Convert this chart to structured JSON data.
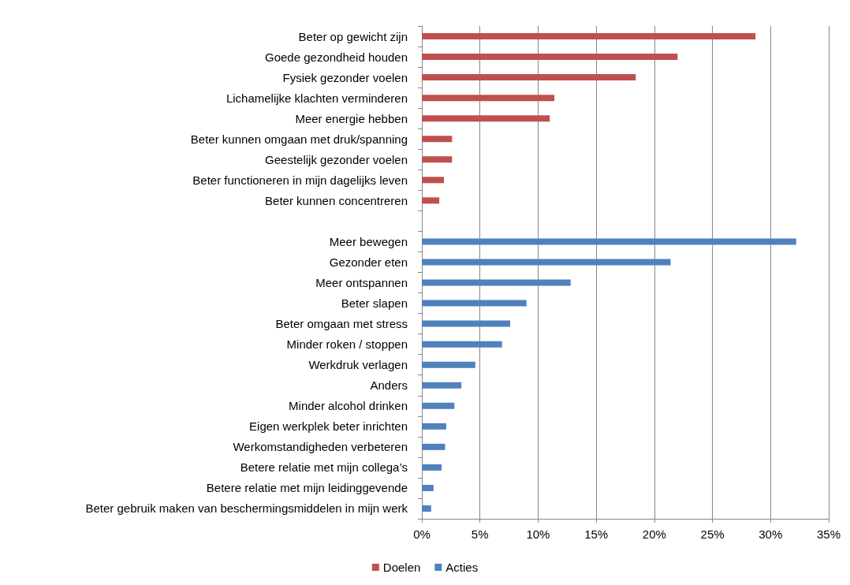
{
  "chart_data": {
    "type": "bar",
    "orientation": "horizontal",
    "categories": [
      "Beter op gewicht zijn",
      "Goede gezondheid houden",
      "Fysiek gezonder voelen",
      "Lichamelijke klachten verminderen",
      "Meer energie hebben",
      "Beter kunnen omgaan met druk/spanning",
      "Geestelijk gezonder voelen",
      "Beter functioneren in mijn dagelijks leven",
      "Beter kunnen concentreren",
      null,
      "Meer bewegen",
      "Gezonder eten",
      "Meer ontspannen",
      "Beter slapen",
      "Beter omgaan met stress",
      "Minder roken / stoppen",
      "Werkdruk verlagen",
      "Anders",
      "Minder alcohol drinken",
      "Eigen werkplek beter inrichten",
      "Werkomstandigheden verbeteren",
      "Betere relatie met mijn collega’s",
      "Betere relatie met mijn leidinggevende",
      "Beter gebruik maken van beschermingsmiddelen in mijn werk"
    ],
    "series": [
      {
        "name": "Doelen",
        "color": "#c0504d",
        "values": [
          28.7,
          22.0,
          18.4,
          11.4,
          11.0,
          2.6,
          2.6,
          1.9,
          1.5,
          null,
          null,
          null,
          null,
          null,
          null,
          null,
          null,
          null,
          null,
          null,
          null,
          null,
          null,
          null
        ]
      },
      {
        "name": "Acties",
        "color": "#4f81bd",
        "values": [
          null,
          null,
          null,
          null,
          null,
          null,
          null,
          null,
          null,
          null,
          32.2,
          21.4,
          12.8,
          9.0,
          7.6,
          6.9,
          4.6,
          3.4,
          2.8,
          2.1,
          2.0,
          1.7,
          1.0,
          0.8
        ]
      }
    ],
    "xlim": [
      0,
      35
    ],
    "xticks": [
      {
        "value": 0,
        "label": "0%"
      },
      {
        "value": 5,
        "label": "5%"
      },
      {
        "value": 10,
        "label": "10%"
      },
      {
        "value": 15,
        "label": "15%"
      },
      {
        "value": 20,
        "label": "20%"
      },
      {
        "value": 25,
        "label": "25%"
      },
      {
        "value": 30,
        "label": "30%"
      },
      {
        "value": 35,
        "label": "35%"
      }
    ],
    "grid": "x",
    "legend": "bottom"
  }
}
